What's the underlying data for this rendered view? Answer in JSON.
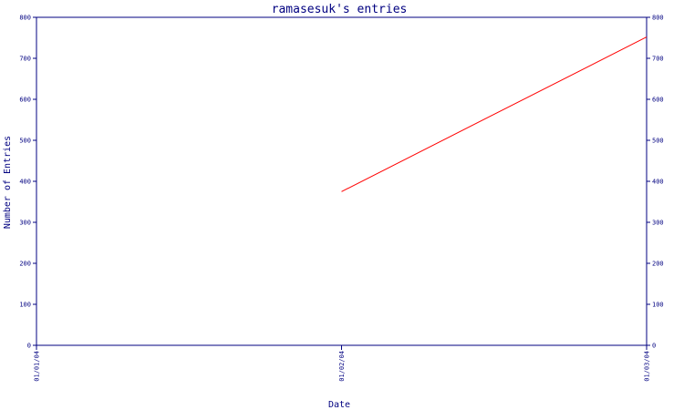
{
  "chart_data": {
    "type": "line",
    "title": "ramasesuk's entries",
    "xlabel": "Date",
    "ylabel": "Number of Entries",
    "x_ticks": [
      "01/01/04",
      "01/02/04",
      "01/03/04"
    ],
    "y_ticks": [
      0,
      100,
      200,
      300,
      400,
      500,
      600,
      700,
      800
    ],
    "ylim": [
      0,
      800
    ],
    "grid": false,
    "right_axis_mirrored": true,
    "series": [
      {
        "x": [
          "01/02/04",
          "01/03/04"
        ],
        "values": [
          375,
          752
        ]
      }
    ],
    "colors": {
      "axis": "#000080",
      "line": "#ff0000",
      "text": "#000080"
    }
  }
}
